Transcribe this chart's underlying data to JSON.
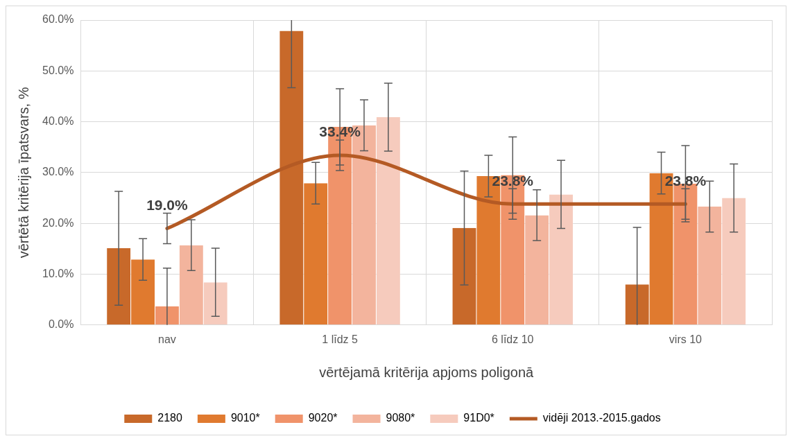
{
  "chart_data": {
    "type": "bar",
    "xlabel": "vērtējamā kritērija apjoms poligonā",
    "ylabel": "vērtētā kritērija īpatsvars, %",
    "categories": [
      "nav",
      "1 līdz 5",
      "6 līdz 10",
      "virs 10"
    ],
    "series": [
      {
        "name": "2180",
        "color": "#c8692a",
        "values": [
          15.1,
          57.9,
          19.1,
          8.0
        ],
        "errors": [
          11.2,
          [
            46.7,
            60
          ],
          11.2,
          [
            0,
            19.2
          ]
        ]
      },
      {
        "name": "9010*",
        "color": "#e07a2f",
        "values": [
          12.9,
          27.9,
          29.3,
          29.9
        ],
        "errors": [
          4.1,
          4.1,
          4.1,
          4.1
        ]
      },
      {
        "name": "9020*",
        "color": "#f0936a",
        "values": [
          3.7,
          39.0,
          29.5,
          27.8
        ],
        "errors": [
          [
            0,
            11.2
          ],
          7.5,
          7.5,
          7.5
        ]
      },
      {
        "name": "9080*",
        "color": "#f3b49d",
        "values": [
          15.7,
          39.3,
          21.6,
          23.3
        ],
        "errors": [
          5.0,
          5.0,
          5.0,
          5.0
        ]
      },
      {
        "name": "91D0*",
        "color": "#f6cbbd",
        "values": [
          8.4,
          40.9,
          25.7,
          25.0
        ],
        "errors": [
          6.7,
          6.7,
          6.7,
          6.7
        ]
      },
      {
        "name": "vidēji 2013.-2015.gados",
        "type": "line",
        "color": "#b45a24",
        "values": [
          19.0,
          33.4,
          23.8,
          23.8
        ],
        "errors": [
          3,
          3,
          3,
          3
        ],
        "value_labels": [
          "19.0%",
          "33.4%",
          "23.8%",
          "23.8%"
        ]
      }
    ],
    "ylim": [
      0,
      60
    ],
    "yticks": [
      {
        "value": 0,
        "label": "0.0%"
      },
      {
        "value": 10,
        "label": "10.0%"
      },
      {
        "value": 20,
        "label": "20.0%"
      },
      {
        "value": 30,
        "label": "30.0%"
      },
      {
        "value": 40,
        "label": "40.0%"
      },
      {
        "value": 50,
        "label": "50.0%"
      },
      {
        "value": 60,
        "label": "60.0%"
      }
    ],
    "grid": true,
    "legend": "bottom",
    "marker": "none",
    "line_style": "solid"
  }
}
